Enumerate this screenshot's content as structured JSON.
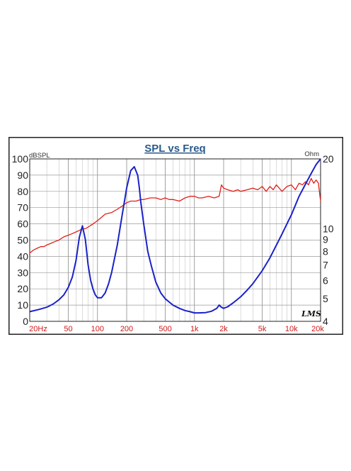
{
  "chart_data": {
    "type": "line",
    "title": "SPL vs Freq",
    "y_left_unit": "dBSPL",
    "y_right_unit": "Ohm",
    "watermark": "LMS",
    "x_scale": "log",
    "xlim": [
      20,
      20000
    ],
    "ylim": [
      0,
      100
    ],
    "y_right_scale": "log",
    "y_right_lim": [
      4,
      20
    ],
    "grid": true,
    "x_tick_labels": [
      {
        "value": 20,
        "label": "20Hz"
      },
      {
        "value": 50,
        "label": "50"
      },
      {
        "value": 100,
        "label": "100"
      },
      {
        "value": 200,
        "label": "200"
      },
      {
        "value": 500,
        "label": "500"
      },
      {
        "value": 1000,
        "label": "1k"
      },
      {
        "value": 2000,
        "label": "2k"
      },
      {
        "value": 5000,
        "label": "5k"
      },
      {
        "value": 10000,
        "label": "10k"
      },
      {
        "value": 20000,
        "label": "20k"
      }
    ],
    "y_left_ticks": [
      0,
      10,
      20,
      30,
      40,
      50,
      60,
      70,
      80,
      90,
      100
    ],
    "y_right_ticks": [
      4,
      5,
      6,
      7,
      8,
      9,
      10,
      20
    ],
    "colors": {
      "spl": "#e0201a",
      "impedance": "#1a22c8",
      "title": "#2b5a8a",
      "frame": "#222222",
      "tick_label": "#d01818"
    },
    "series": [
      {
        "key": "spl",
        "axis": "left",
        "x": [
          20,
          22,
          24,
          26,
          28,
          30,
          33,
          36,
          40,
          45,
          50,
          55,
          60,
          65,
          70,
          75,
          80,
          90,
          100,
          110,
          120,
          140,
          160,
          180,
          200,
          220,
          250,
          280,
          300,
          350,
          400,
          450,
          500,
          550,
          600,
          700,
          800,
          900,
          1000,
          1100,
          1200,
          1400,
          1600,
          1800,
          1900,
          2000,
          2200,
          2500,
          2800,
          3000,
          3500,
          4000,
          4500,
          5000,
          5500,
          6000,
          6500,
          7000,
          8000,
          9000,
          10000,
          11000,
          12000,
          13000,
          14000,
          15000,
          16000,
          17000,
          18000,
          19000,
          20000
        ],
        "y": [
          42,
          44,
          45,
          46,
          46,
          47,
          48,
          49,
          50,
          52,
          53,
          54,
          55,
          56,
          57,
          57,
          58,
          60,
          62,
          64,
          66,
          67,
          69,
          71,
          73,
          74,
          74,
          75,
          75,
          76,
          76,
          75,
          76,
          75,
          75,
          74,
          76,
          77,
          77,
          76,
          76,
          77,
          76,
          77,
          84,
          82,
          81,
          80,
          81,
          80,
          81,
          82,
          81,
          83,
          80,
          83,
          81,
          84,
          80,
          83,
          84,
          81,
          85,
          84,
          86,
          84,
          88,
          85,
          87,
          85,
          74
        ]
      },
      {
        "key": "impedance",
        "axis": "right",
        "x": [
          20,
          25,
          30,
          35,
          40,
          45,
          50,
          55,
          60,
          65,
          70,
          75,
          80,
          85,
          90,
          95,
          100,
          110,
          120,
          130,
          140,
          160,
          180,
          200,
          220,
          240,
          260,
          270,
          280,
          300,
          330,
          360,
          400,
          450,
          500,
          600,
          700,
          800,
          900,
          1000,
          1100,
          1300,
          1500,
          1700,
          1800,
          1900,
          2000,
          2200,
          2500,
          3000,
          3500,
          4000,
          5000,
          6000,
          7000,
          8000,
          10000,
          12000,
          14000,
          16000,
          18000,
          20000
        ],
        "y": [
          4.4,
          4.5,
          4.6,
          4.75,
          4.95,
          5.2,
          5.6,
          6.2,
          7.3,
          9.2,
          10.3,
          9.0,
          7.0,
          6.0,
          5.5,
          5.2,
          5.05,
          5.05,
          5.3,
          5.8,
          6.5,
          8.5,
          11.5,
          15.0,
          17.8,
          18.5,
          17.0,
          15.0,
          13.0,
          10.5,
          8.0,
          6.9,
          5.9,
          5.3,
          5.0,
          4.7,
          4.55,
          4.45,
          4.4,
          4.35,
          4.35,
          4.36,
          4.42,
          4.55,
          4.7,
          4.6,
          4.55,
          4.62,
          4.8,
          5.1,
          5.45,
          5.8,
          6.6,
          7.5,
          8.5,
          9.5,
          11.5,
          13.8,
          15.6,
          17.3,
          18.9,
          20.0
        ]
      }
    ]
  }
}
